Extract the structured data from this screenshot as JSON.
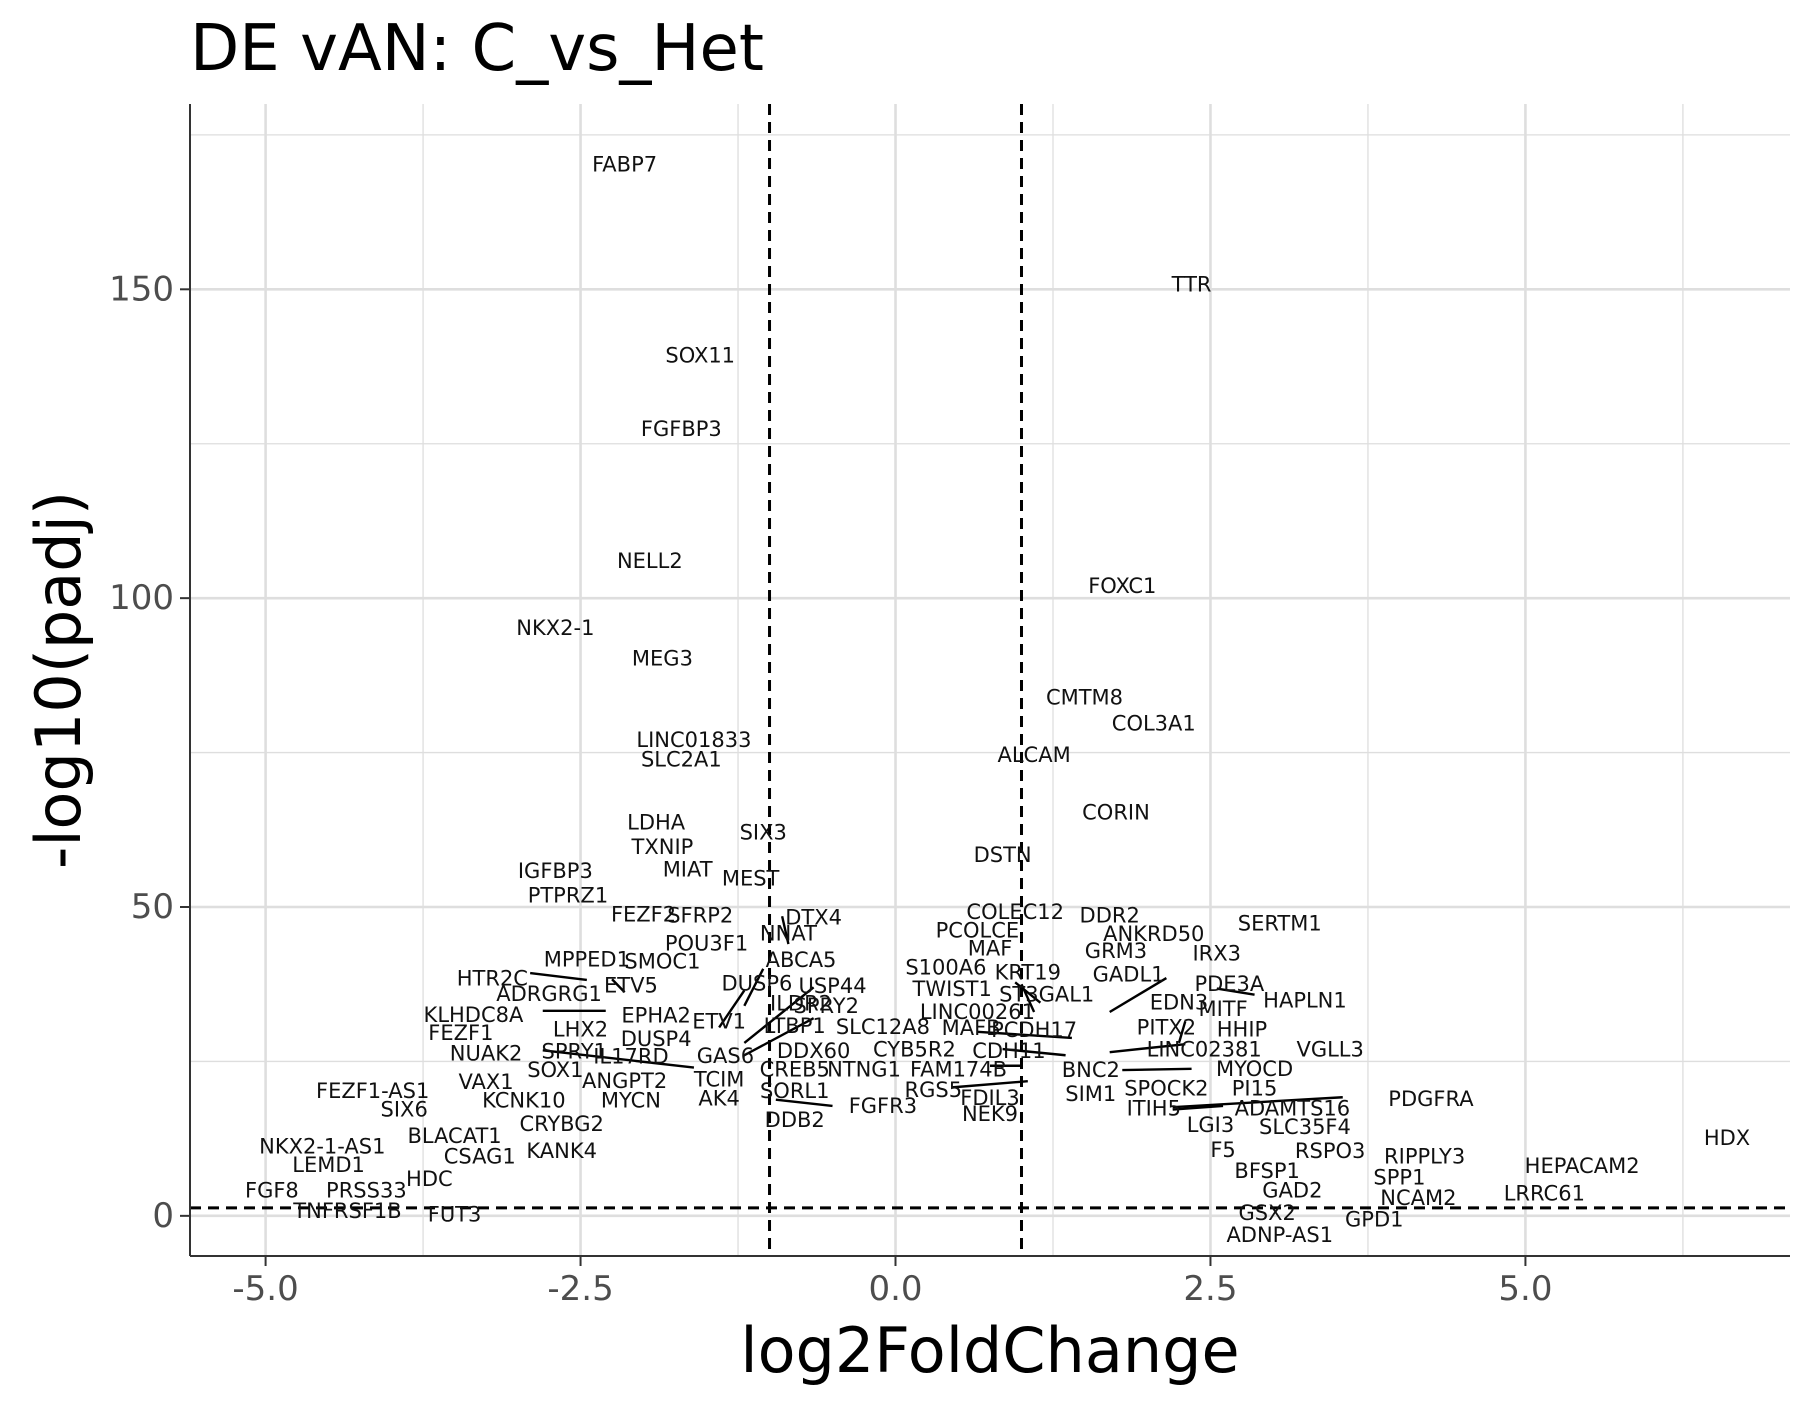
{
  "chart_data": {
    "type": "scatter",
    "title": "DE vAN: C_vs_Het",
    "xlabel": "log2FoldChange",
    "ylabel": "-log10(padj)",
    "xlim": [
      -5.6,
      7.1
    ],
    "ylim": [
      -6.5,
      180
    ],
    "x_ticks": [
      -5.0,
      -2.5,
      0.0,
      2.5,
      5.0
    ],
    "x_tick_labels": [
      "-5.0",
      "-2.5",
      "0.0",
      "2.5",
      "5.0"
    ],
    "y_ticks": [
      0,
      50,
      100,
      150
    ],
    "y_tick_labels": [
      "0",
      "50",
      "100",
      "150"
    ],
    "grid": true,
    "legend": "none",
    "threshold_lines": {
      "vertical": [
        -1.0,
        1.0
      ],
      "horizontal": [
        1.3
      ],
      "style": "dashed"
    },
    "colors": {
      "label_text": "#111111",
      "grid": "#dedede",
      "axis": "#333333",
      "threshold": "#000000"
    },
    "labels": [
      {
        "gene": "FABP7",
        "x": -2.15,
        "y": 170.2
      },
      {
        "gene": "TTR",
        "x": 2.35,
        "y": 150.8
      },
      {
        "gene": "SOX11",
        "x": -1.55,
        "y": 139.3
      },
      {
        "gene": "FGFBP3",
        "x": -1.7,
        "y": 127.4
      },
      {
        "gene": "NELL2",
        "x": -1.95,
        "y": 106.0
      },
      {
        "gene": "FOXC1",
        "x": 1.8,
        "y": 102.0
      },
      {
        "gene": "NKX2-1",
        "x": -2.7,
        "y": 95.2
      },
      {
        "gene": "MEG3",
        "x": -1.85,
        "y": 90.2
      },
      {
        "gene": "CMTM8",
        "x": 1.5,
        "y": 83.9
      },
      {
        "gene": "COL3A1",
        "x": 2.05,
        "y": 79.7
      },
      {
        "gene": "LINC01833",
        "x": -1.6,
        "y": 77.0
      },
      {
        "gene": "ALCAM",
        "x": 1.1,
        "y": 74.6
      },
      {
        "gene": "SLC2A1",
        "x": -1.7,
        "y": 73.9
      },
      {
        "gene": "CORIN",
        "x": 1.75,
        "y": 65.3
      },
      {
        "gene": "LDHA",
        "x": -1.9,
        "y": 63.7
      },
      {
        "gene": "SIX3",
        "x": -1.05,
        "y": 62.1
      },
      {
        "gene": "TXNIP",
        "x": -1.85,
        "y": 59.7
      },
      {
        "gene": "DSTN",
        "x": 0.85,
        "y": 58.4
      },
      {
        "gene": "MIAT",
        "x": -1.65,
        "y": 56.1
      },
      {
        "gene": "IGFBP3",
        "x": -2.7,
        "y": 55.8
      },
      {
        "gene": "MEST",
        "x": -1.15,
        "y": 54.6
      },
      {
        "gene": "PTPRZ1",
        "x": -2.6,
        "y": 51.9
      },
      {
        "gene": "FEZF2",
        "x": -2.0,
        "y": 48.8
      },
      {
        "gene": "SFRP2",
        "x": -1.55,
        "y": 48.6
      },
      {
        "gene": "COLEC12",
        "x": 0.95,
        "y": 49.2
      },
      {
        "gene": "DTX4",
        "x": -0.65,
        "y": 48.3
      },
      {
        "gene": "DDR2",
        "x": 1.7,
        "y": 48.6
      },
      {
        "gene": "SERTM1",
        "x": 3.05,
        "y": 47.3
      },
      {
        "gene": "PCOLCE",
        "x": 0.65,
        "y": 46.2
      },
      {
        "gene": "NNAT",
        "x": -0.85,
        "y": 45.7
      },
      {
        "gene": "ANKRD50",
        "x": 2.05,
        "y": 45.6
      },
      {
        "gene": "POU3F1",
        "x": -1.5,
        "y": 44.1
      },
      {
        "gene": "MAF",
        "x": 0.75,
        "y": 43.3
      },
      {
        "gene": "GRM3",
        "x": 1.75,
        "y": 42.9
      },
      {
        "gene": "IRX3",
        "x": 2.55,
        "y": 42.5
      },
      {
        "gene": "SMOC1",
        "x": -1.85,
        "y": 41.2
      },
      {
        "gene": "ABCA5",
        "x": -0.75,
        "y": 41.4
      },
      {
        "gene": "MPPED1",
        "x": -2.45,
        "y": 41.5
      },
      {
        "gene": "S100A6",
        "x": 0.4,
        "y": 40.2
      },
      {
        "gene": "HTR2C",
        "x": -3.2,
        "y": 38.4
      },
      {
        "gene": "KRT19",
        "x": 1.05,
        "y": 39.4
      },
      {
        "gene": "GADL1",
        "x": 1.85,
        "y": 39.1
      },
      {
        "gene": "DUSP6",
        "x": -1.1,
        "y": 37.6
      },
      {
        "gene": "PDE3A",
        "x": 2.65,
        "y": 37.5
      },
      {
        "gene": "ETV5",
        "x": -2.1,
        "y": 37.3
      },
      {
        "gene": "USP44",
        "x": -0.5,
        "y": 37.2
      },
      {
        "gene": "TWIST1",
        "x": 0.45,
        "y": 36.7
      },
      {
        "gene": "ADRGRG1",
        "x": -2.75,
        "y": 35.9
      },
      {
        "gene": "ST3GAL1",
        "x": 1.2,
        "y": 35.8
      },
      {
        "gene": "HAPLN1",
        "x": 3.25,
        "y": 34.9
      },
      {
        "gene": "EDN3",
        "x": 2.25,
        "y": 34.5
      },
      {
        "gene": "ILDR2",
        "x": -0.75,
        "y": 34.4
      },
      {
        "gene": "SPRY2",
        "x": -0.55,
        "y": 34.0
      },
      {
        "gene": "MITF",
        "x": 2.6,
        "y": 33.5
      },
      {
        "gene": "LINC00261",
        "x": 0.65,
        "y": 33.0
      },
      {
        "gene": "KLHDC8A",
        "x": -3.35,
        "y": 32.5
      },
      {
        "gene": "EPHA2",
        "x": -1.9,
        "y": 32.4
      },
      {
        "gene": "ETV1",
        "x": -1.4,
        "y": 31.5
      },
      {
        "gene": "LHX2",
        "x": -2.5,
        "y": 30.2
      },
      {
        "gene": "LTBP1",
        "x": -0.8,
        "y": 30.7
      },
      {
        "gene": "SLC12A8",
        "x": -0.1,
        "y": 30.6
      },
      {
        "gene": "MAFB",
        "x": 0.6,
        "y": 30.4
      },
      {
        "gene": "PCDH17",
        "x": 1.1,
        "y": 30.1
      },
      {
        "gene": "PITX2",
        "x": 2.15,
        "y": 30.5
      },
      {
        "gene": "HHIP",
        "x": 2.75,
        "y": 30.2
      },
      {
        "gene": "FEZF1",
        "x": -3.45,
        "y": 29.6
      },
      {
        "gene": "DUSP4",
        "x": -1.9,
        "y": 28.6
      },
      {
        "gene": "VGLL3",
        "x": 3.45,
        "y": 26.9
      },
      {
        "gene": "LINC02381",
        "x": 2.45,
        "y": 26.9
      },
      {
        "gene": "CYB5R2",
        "x": 0.15,
        "y": 26.9
      },
      {
        "gene": "CDH11",
        "x": 0.9,
        "y": 26.7
      },
      {
        "gene": "DDX60",
        "x": -0.65,
        "y": 26.7
      },
      {
        "gene": "SPRY1",
        "x": -2.55,
        "y": 26.6
      },
      {
        "gene": "NUAK2",
        "x": -3.25,
        "y": 26.3
      },
      {
        "gene": "IL17RD",
        "x": -2.1,
        "y": 25.8
      },
      {
        "gene": "GAS6",
        "x": -1.35,
        "y": 25.9
      },
      {
        "gene": "SOX1",
        "x": -2.7,
        "y": 23.6
      },
      {
        "gene": "BNC2",
        "x": 1.55,
        "y": 23.6
      },
      {
        "gene": "MYOCD",
        "x": 2.85,
        "y": 23.8
      },
      {
        "gene": "CREB5",
        "x": -0.8,
        "y": 23.7
      },
      {
        "gene": "NTNG1",
        "x": -0.25,
        "y": 23.7
      },
      {
        "gene": "FAM174B",
        "x": 0.5,
        "y": 23.7
      },
      {
        "gene": "ANGPT2",
        "x": -2.15,
        "y": 21.8
      },
      {
        "gene": "TCIM",
        "x": -1.4,
        "y": 22.1
      },
      {
        "gene": "VAX1",
        "x": -3.25,
        "y": 21.7
      },
      {
        "gene": "FEZF1-AS1",
        "x": -4.15,
        "y": 20.2
      },
      {
        "gene": "SPOCK2",
        "x": 2.15,
        "y": 20.6
      },
      {
        "gene": "PI15",
        "x": 2.85,
        "y": 20.6
      },
      {
        "gene": "SORL1",
        "x": -0.8,
        "y": 20.2
      },
      {
        "gene": "RGS5",
        "x": 0.3,
        "y": 20.4
      },
      {
        "gene": "SIM1",
        "x": 1.55,
        "y": 19.7
      },
      {
        "gene": "FDIL3",
        "x": 0.75,
        "y": 19.1
      },
      {
        "gene": "KCNK10",
        "x": -2.95,
        "y": 18.7
      },
      {
        "gene": "MYCN",
        "x": -2.1,
        "y": 18.7
      },
      {
        "gene": "AK4",
        "x": -1.4,
        "y": 19.0
      },
      {
        "gene": "PDGFRA",
        "x": 4.25,
        "y": 18.9
      },
      {
        "gene": "FGFR3",
        "x": -0.1,
        "y": 17.8
      },
      {
        "gene": "ITIH5",
        "x": 2.05,
        "y": 17.4
      },
      {
        "gene": "ADAMTS16",
        "x": 3.15,
        "y": 17.4
      },
      {
        "gene": "SIX6",
        "x": -3.9,
        "y": 17.2
      },
      {
        "gene": "NEK9",
        "x": 0.75,
        "y": 16.5
      },
      {
        "gene": "DDB2",
        "x": -0.8,
        "y": 15.5
      },
      {
        "gene": "CRYBG2",
        "x": -2.65,
        "y": 14.9
      },
      {
        "gene": "LGI3",
        "x": 2.5,
        "y": 14.7
      },
      {
        "gene": "SLC35F4",
        "x": 3.25,
        "y": 14.4
      },
      {
        "gene": "BLACAT1",
        "x": -3.5,
        "y": 12.9
      },
      {
        "gene": "HDX",
        "x": 6.6,
        "y": 12.6
      },
      {
        "gene": "NKX2-1-AS1",
        "x": -4.55,
        "y": 11.2
      },
      {
        "gene": "CSAG1",
        "x": -3.3,
        "y": 9.6
      },
      {
        "gene": "KANK4",
        "x": -2.65,
        "y": 10.5
      },
      {
        "gene": "F5",
        "x": 2.6,
        "y": 10.7
      },
      {
        "gene": "RSPO3",
        "x": 3.45,
        "y": 10.5
      },
      {
        "gene": "RIPPLY3",
        "x": 4.2,
        "y": 9.6
      },
      {
        "gene": "LEMD1",
        "x": -4.5,
        "y": 8.2
      },
      {
        "gene": "HEPACAM2",
        "x": 5.45,
        "y": 8.1
      },
      {
        "gene": "BFSP1",
        "x": 2.95,
        "y": 7.3
      },
      {
        "gene": "SPP1",
        "x": 4.0,
        "y": 6.2
      },
      {
        "gene": "HDC",
        "x": -3.7,
        "y": 6.0
      },
      {
        "gene": "GAD2",
        "x": 3.15,
        "y": 4.1
      },
      {
        "gene": "FGF8",
        "x": -4.95,
        "y": 4.1
      },
      {
        "gene": "PRSS33",
        "x": -4.2,
        "y": 4.1
      },
      {
        "gene": "LRRC61",
        "x": 5.15,
        "y": 3.6
      },
      {
        "gene": "NCAM2",
        "x": 4.15,
        "y": 2.9
      },
      {
        "gene": "TNFRSF1B",
        "x": -4.35,
        "y": 0.8
      },
      {
        "gene": "GSX2",
        "x": 2.95,
        "y": 0.5
      },
      {
        "gene": "FUT3",
        "x": -3.5,
        "y": 0.2
      },
      {
        "gene": "GPD1",
        "x": 3.8,
        "y": -0.6
      },
      {
        "gene": "ADNP-AS1",
        "x": 3.05,
        "y": -3.1
      }
    ],
    "connectors": [
      {
        "x1": -1.2,
        "y1": 34.0,
        "x2": -1.05,
        "y2": 40.0
      },
      {
        "x1": -1.4,
        "y1": 30.5,
        "x2": -1.2,
        "y2": 36.5
      },
      {
        "x1": -0.85,
        "y1": 44.0,
        "x2": -0.9,
        "y2": 48.5
      },
      {
        "x1": -2.9,
        "y1": 39.3,
        "x2": -2.45,
        "y2": 38.2
      },
      {
        "x1": -2.25,
        "y1": 38.3,
        "x2": -2.15,
        "y2": 36.2
      },
      {
        "x1": -2.8,
        "y1": 33.2,
        "x2": -2.3,
        "y2": 33.2
      },
      {
        "x1": -2.8,
        "y1": 26.8,
        "x2": -1.6,
        "y2": 24.0
      },
      {
        "x1": -1.2,
        "y1": 28.0,
        "x2": -0.65,
        "y2": 37.0
      },
      {
        "x1": -1.2,
        "y1": 26.0,
        "x2": -0.65,
        "y2": 32.0
      },
      {
        "x1": -0.95,
        "y1": 18.8,
        "x2": -0.5,
        "y2": 17.8
      },
      {
        "x1": 0.45,
        "y1": 20.8,
        "x2": 1.05,
        "y2": 21.8
      },
      {
        "x1": 0.75,
        "y1": 24.3,
        "x2": 1.0,
        "y2": 24.3
      },
      {
        "x1": 0.65,
        "y1": 29.8,
        "x2": 1.4,
        "y2": 28.8
      },
      {
        "x1": 0.85,
        "y1": 27.0,
        "x2": 1.35,
        "y2": 26.0
      },
      {
        "x1": 1.0,
        "y1": 37.5,
        "x2": 1.1,
        "y2": 33.0
      },
      {
        "x1": 0.95,
        "y1": 37.8,
        "x2": 1.15,
        "y2": 34.5
      },
      {
        "x1": 1.7,
        "y1": 33.0,
        "x2": 2.15,
        "y2": 38.5
      },
      {
        "x1": 2.25,
        "y1": 28.0,
        "x2": 2.3,
        "y2": 31.5
      },
      {
        "x1": 1.7,
        "y1": 26.5,
        "x2": 2.3,
        "y2": 27.8
      },
      {
        "x1": 2.85,
        "y1": 35.8,
        "x2": 2.55,
        "y2": 36.8
      },
      {
        "x1": 1.8,
        "y1": 23.6,
        "x2": 2.35,
        "y2": 23.8
      },
      {
        "x1": 2.2,
        "y1": 17.6,
        "x2": 3.55,
        "y2": 19.2
      },
      {
        "x1": 2.2,
        "y1": 17.2,
        "x2": 2.6,
        "y2": 17.8
      }
    ]
  }
}
